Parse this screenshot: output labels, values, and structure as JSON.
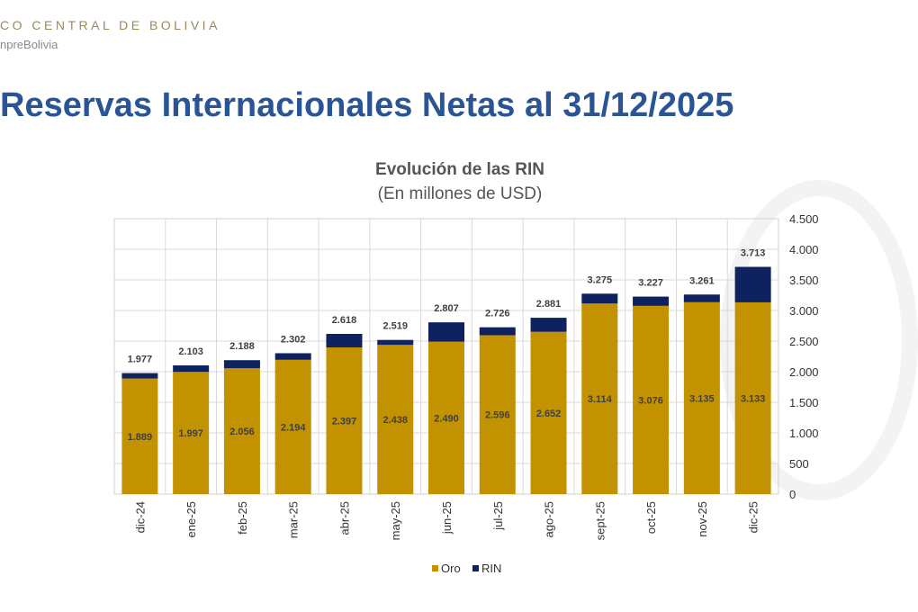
{
  "header": {
    "brand": "CO CENTRAL DE BOLIVIA",
    "handle": "npreBolivia",
    "title": "Reservas Internacionales Netas al 31/12/2025"
  },
  "colors": {
    "oro": "#c29200",
    "rin": "#0f2260",
    "title": "#2a5594"
  },
  "chart_data": {
    "type": "bar",
    "stacked": true,
    "title": "Evolución de las RIN",
    "subtitle": "(En millones de USD)",
    "categories": [
      "dic-24",
      "ene-25",
      "feb-25",
      "mar-25",
      "abr-25",
      "may-25",
      "jun-25",
      "jul-25",
      "ago-25",
      "sept-25",
      "oct-25",
      "nov-25",
      "dic-25"
    ],
    "series": [
      {
        "name": "Oro",
        "values": [
          1889,
          1997,
          2056,
          2194,
          2397,
          2438,
          2490,
          2596,
          2652,
          3114,
          3076,
          3135,
          3133
        ],
        "labels": [
          "1.889",
          "1.997",
          "2.056",
          "2.194",
          "2.397",
          "2.438",
          "2.490",
          "2.596",
          "2.652",
          "3.114",
          "3.076",
          "3.135",
          "3.133"
        ]
      },
      {
        "name": "RIN",
        "totals": [
          1977,
          2103,
          2188,
          2302,
          2618,
          2519,
          2807,
          2726,
          2881,
          3275,
          3227,
          3261,
          3713
        ],
        "labels": [
          "1.977",
          "2.103",
          "2.188",
          "2.302",
          "2.618",
          "2.519",
          "2.807",
          "2.726",
          "2.881",
          "3.275",
          "3.227",
          "3.261",
          "3.713"
        ]
      }
    ],
    "ylim": [
      0,
      4500
    ],
    "yticks": [
      0,
      500,
      1000,
      1500,
      2000,
      2500,
      3000,
      3500,
      4000,
      4500
    ],
    "ytick_labels": [
      "0",
      "500",
      "1.000",
      "1.500",
      "2.000",
      "2.500",
      "3.000",
      "3.500",
      "4.000",
      "4.500"
    ],
    "yaxis_position": "right",
    "grid": true,
    "legend": {
      "position": "bottom",
      "entries": [
        "Oro",
        "RIN"
      ]
    }
  }
}
